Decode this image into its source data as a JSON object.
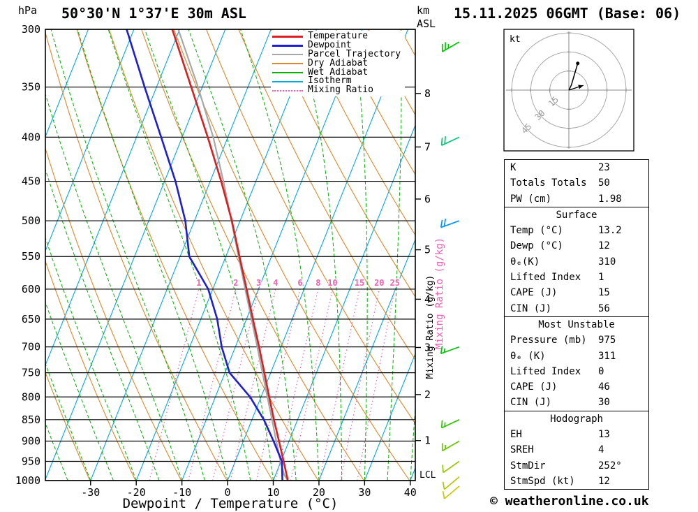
{
  "header": {
    "pressure_unit": "hPa",
    "station": "50°30'N 1°37'E 30m ASL",
    "datetime": "15.11.2025 06GMT (Base: 06)",
    "altitude_unit": "km",
    "altitude_ref": "ASL"
  },
  "footer": {
    "xlabel": "Dewpoint / Temperature (°C)",
    "copyright": "© weatheronline.co.uk"
  },
  "legend": {
    "items": [
      {
        "label": "Temperature",
        "color": "#dc1e1e",
        "style": "solid",
        "weight": 3
      },
      {
        "label": "Dewpoint",
        "color": "#1e1ed2",
        "style": "solid",
        "weight": 3
      },
      {
        "label": "Parcel Trajectory",
        "color": "#a8a8a8",
        "style": "solid",
        "weight": 2
      },
      {
        "label": "Dry Adiabat",
        "color": "#e08828",
        "style": "solid",
        "weight": 2
      },
      {
        "label": "Wet Adiabat",
        "color": "#00b400",
        "style": "solid",
        "weight": 2
      },
      {
        "label": "Isotherm",
        "color": "#00aadc",
        "style": "solid",
        "weight": 2
      },
      {
        "label": "Mixing Ratio",
        "color": "#f060b4",
        "style": "dotted",
        "weight": 2
      }
    ]
  },
  "chart_data": {
    "type": "skewt-log-p",
    "pressure_levels_hpa": [
      300,
      350,
      400,
      450,
      500,
      550,
      600,
      650,
      700,
      750,
      800,
      850,
      900,
      950,
      1000
    ],
    "temp_ticks_c": [
      -30,
      -20,
      -10,
      0,
      10,
      20,
      30,
      40
    ],
    "km_ticks_asl": [
      1,
      2,
      3,
      4,
      5,
      6,
      7,
      8
    ],
    "mixing_ratio_gkg": [
      1,
      2,
      3,
      4,
      6,
      8,
      10,
      15,
      20,
      25
    ],
    "mixing_ratio_axis_label": "Mixing Ratio (g/kg)",
    "lcl_label": "LCL",
    "lcl_pressure_hpa": 985,
    "isotherms_c": {
      "min": -80,
      "max": 40,
      "step": 10
    },
    "dry_adiabats_theta_k": {
      "min": 233,
      "max": 453,
      "step": 10
    },
    "wet_adiabats_c": {
      "min": -40,
      "max": 40,
      "step": 5
    },
    "temperature_profile_p_c": [
      [
        1000,
        13.2
      ],
      [
        950,
        10.6
      ],
      [
        900,
        7.8
      ],
      [
        850,
        4.8
      ],
      [
        800,
        1.8
      ],
      [
        750,
        -1.4
      ],
      [
        700,
        -4.8
      ],
      [
        650,
        -8.6
      ],
      [
        600,
        -12.6
      ],
      [
        550,
        -17
      ],
      [
        500,
        -21.8
      ],
      [
        450,
        -27.6
      ],
      [
        400,
        -34.4
      ],
      [
        350,
        -42.4
      ],
      [
        300,
        -51.6
      ]
    ],
    "dewpoint_profile_p_c": [
      [
        1000,
        12
      ],
      [
        950,
        10.2
      ],
      [
        900,
        6.6
      ],
      [
        850,
        2.6
      ],
      [
        800,
        -2.4
      ],
      [
        750,
        -9
      ],
      [
        700,
        -13
      ],
      [
        650,
        -16.4
      ],
      [
        600,
        -21
      ],
      [
        550,
        -28
      ],
      [
        500,
        -32
      ],
      [
        450,
        -37.6
      ],
      [
        400,
        -44.6
      ],
      [
        350,
        -52.6
      ],
      [
        300,
        -61.6
      ]
    ],
    "parcel_profile_p_c": [
      [
        1000,
        13.2
      ],
      [
        985,
        11.9
      ],
      [
        950,
        9.9
      ],
      [
        900,
        7.2
      ],
      [
        850,
        4.4
      ],
      [
        800,
        1.4
      ],
      [
        750,
        -1.8
      ],
      [
        700,
        -5.2
      ],
      [
        650,
        -8.9
      ],
      [
        600,
        -12.9
      ],
      [
        550,
        -17.2
      ],
      [
        500,
        -21.9
      ],
      [
        450,
        -27.1
      ],
      [
        400,
        -33.2
      ],
      [
        350,
        -40.9
      ],
      [
        300,
        -50.3
      ]
    ],
    "wind_barbs": [
      {
        "p": 300,
        "kt": 25,
        "dir": 240,
        "color": "#00c800"
      },
      {
        "p": 400,
        "kt": 20,
        "dir": 245,
        "color": "#00c878"
      },
      {
        "p": 500,
        "kt": 20,
        "dir": 250,
        "color": "#0096ff"
      },
      {
        "p": 700,
        "kt": 15,
        "dir": 250,
        "color": "#00c800"
      },
      {
        "p": 850,
        "kt": 15,
        "dir": 245,
        "color": "#2cc800"
      },
      {
        "p": 900,
        "kt": 15,
        "dir": 240,
        "color": "#64c800"
      },
      {
        "p": 950,
        "kt": 10,
        "dir": 235,
        "color": "#96c800"
      },
      {
        "p": 990,
        "kt": 10,
        "dir": 230,
        "color": "#b4c800"
      },
      {
        "p": 1015,
        "kt": 10,
        "dir": 230,
        "color": "#c8c800"
      }
    ],
    "colors": {
      "temperature": "#dc1e1e",
      "dewpoint": "#1e1ed2",
      "parcel": "#a8a8a8",
      "dry_adiabat": "#e08828",
      "wet_adiabat": "#00b400",
      "isotherm": "#00aadc",
      "mixing_ratio": "#f060b4",
      "grid": "#000000"
    }
  },
  "hodograph": {
    "unit_label": "kt",
    "rings_kt": [
      15,
      30,
      45
    ],
    "trace_uv_kt": [
      [
        0,
        0
      ],
      [
        2,
        4
      ],
      [
        4,
        11
      ],
      [
        7,
        21
      ]
    ],
    "storm_motion": {
      "dir_deg": 252,
      "speed_kt": 12
    }
  },
  "table": {
    "sections": [
      {
        "header": null,
        "rows": [
          [
            "K",
            "23"
          ],
          [
            "Totals Totals",
            "50"
          ],
          [
            "PW (cm)",
            "1.98"
          ]
        ]
      },
      {
        "header": "Surface",
        "rows": [
          [
            "Temp (°C)",
            "13.2"
          ],
          [
            "Dewp (°C)",
            "12"
          ],
          [
            "θₑ(K)",
            "310"
          ],
          [
            "Lifted Index",
            "1"
          ],
          [
            "CAPE (J)",
            "15"
          ],
          [
            "CIN (J)",
            "56"
          ]
        ]
      },
      {
        "header": "Most Unstable",
        "rows": [
          [
            "Pressure (mb)",
            "975"
          ],
          [
            "θₑ (K)",
            "311"
          ],
          [
            "Lifted Index",
            "0"
          ],
          [
            "CAPE (J)",
            "46"
          ],
          [
            "CIN (J)",
            "30"
          ]
        ]
      },
      {
        "header": "Hodograph",
        "rows": [
          [
            "EH",
            "13"
          ],
          [
            "SREH",
            "4"
          ],
          [
            "StmDir",
            "252°"
          ],
          [
            "StmSpd (kt)",
            "12"
          ]
        ]
      }
    ]
  }
}
